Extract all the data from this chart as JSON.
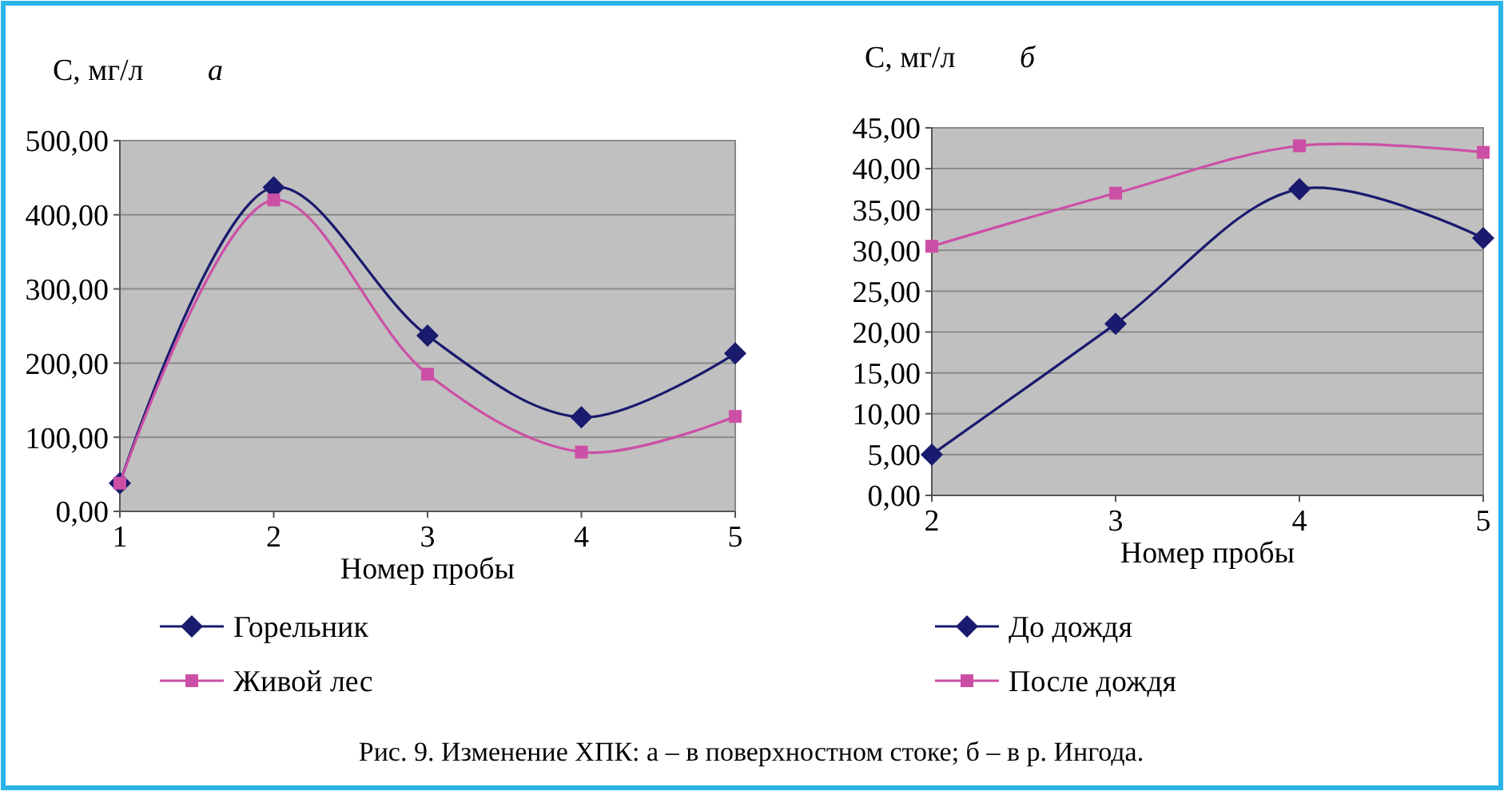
{
  "chart_data": [
    {
      "type": "line",
      "ylabel": "C, мг/л",
      "annotations": [
        "а",
        "Рис. 9. Изменение ХПК: а – в поверхностном стоке; б – в р. Ингода."
      ],
      "xlabel": "Номер пробы",
      "x": [
        1,
        2,
        3,
        4,
        5
      ],
      "xlim": [
        1,
        5
      ],
      "xticks": [
        1,
        2,
        3,
        4,
        5
      ],
      "ylim": [
        0,
        500
      ],
      "yticks": [
        {
          "value": 0,
          "label": "0,00"
        },
        {
          "value": 100,
          "label": "100,00"
        },
        {
          "value": 200,
          "label": "200,00"
        },
        {
          "value": 300,
          "label": "300,00"
        },
        {
          "value": 400,
          "label": "400,00"
        },
        {
          "value": 500,
          "label": "500,00"
        }
      ],
      "grid": "y",
      "legend": "bottom",
      "series": [
        {
          "name": "Горельник",
          "color": "#1a1a6e",
          "marker": "diamond",
          "values": [
            38,
            437,
            237,
            127,
            213
          ]
        },
        {
          "name": "Живой лес",
          "color": "#cc4fa6",
          "marker": "square",
          "values": [
            38,
            420,
            185,
            80,
            128
          ]
        }
      ]
    },
    {
      "type": "line",
      "ylabel": "C, мг/л",
      "annotations": [
        "б"
      ],
      "xlabel": "Номер пробы",
      "x": [
        2,
        3,
        4,
        5
      ],
      "xlim": [
        2,
        5
      ],
      "xticks": [
        2,
        3,
        4,
        5
      ],
      "ylim": [
        0,
        45
      ],
      "yticks": [
        {
          "value": 0,
          "label": "0,00"
        },
        {
          "value": 5,
          "label": "5,00"
        },
        {
          "value": 10,
          "label": "10,00"
        },
        {
          "value": 15,
          "label": "15,00"
        },
        {
          "value": 20,
          "label": "20,00"
        },
        {
          "value": 25,
          "label": "25,00"
        },
        {
          "value": 30,
          "label": "30,00"
        },
        {
          "value": 35,
          "label": "35,00"
        },
        {
          "value": 40,
          "label": "40,00"
        },
        {
          "value": 45,
          "label": "45,00"
        }
      ],
      "grid": "y",
      "legend": "bottom",
      "series": [
        {
          "name": "До дождя",
          "color": "#1a1a6e",
          "marker": "diamond",
          "values": [
            5,
            21,
            37.5,
            31.5
          ]
        },
        {
          "name": "После дождя",
          "color": "#cc4fa6",
          "marker": "square",
          "values": [
            30.5,
            37,
            42.8,
            42
          ]
        }
      ]
    }
  ]
}
